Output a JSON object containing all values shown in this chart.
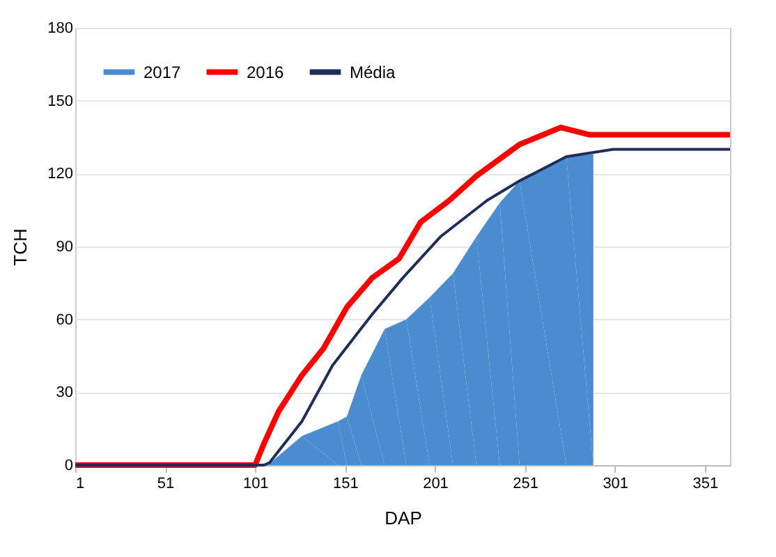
{
  "chart_data": {
    "type": "line",
    "xlabel": "DAP",
    "ylabel": "TCH",
    "xlim": [
      1,
      365
    ],
    "ylim": [
      0,
      180
    ],
    "xticks": [
      1,
      51,
      101,
      151,
      201,
      251,
      301,
      351
    ],
    "yticks": [
      0,
      30,
      60,
      90,
      120,
      150,
      180
    ],
    "grid": "y",
    "legend": "top left",
    "series": [
      {
        "name": "2017",
        "type": "area",
        "color": "#4a8ccf",
        "x": [
          1,
          108,
          127,
          147,
          152,
          160,
          173,
          185,
          198,
          211,
          224,
          237,
          248,
          274,
          289
        ],
        "values": [
          0,
          0,
          12,
          18,
          20,
          37,
          56,
          60,
          69,
          79,
          94,
          108,
          117,
          127,
          128
        ]
      },
      {
        "name": "2016",
        "color": "#ff0000",
        "x": [
          1,
          101,
          106,
          114,
          127,
          139,
          152,
          166,
          181,
          193,
          209,
          224,
          248,
          271,
          287,
          365
        ],
        "values": [
          0,
          0,
          9,
          22,
          37,
          48,
          65,
          77,
          85,
          100,
          109,
          119,
          132,
          139,
          136,
          136
        ]
      },
      {
        "name": "Média",
        "color": "#1f2d5a",
        "x": [
          1,
          106,
          109,
          127,
          144,
          166,
          183,
          204,
          230,
          248,
          274,
          300,
          365
        ],
        "values": [
          0,
          0,
          1,
          18,
          41,
          62,
          77,
          94,
          109,
          117,
          127,
          130,
          130
        ]
      }
    ]
  }
}
